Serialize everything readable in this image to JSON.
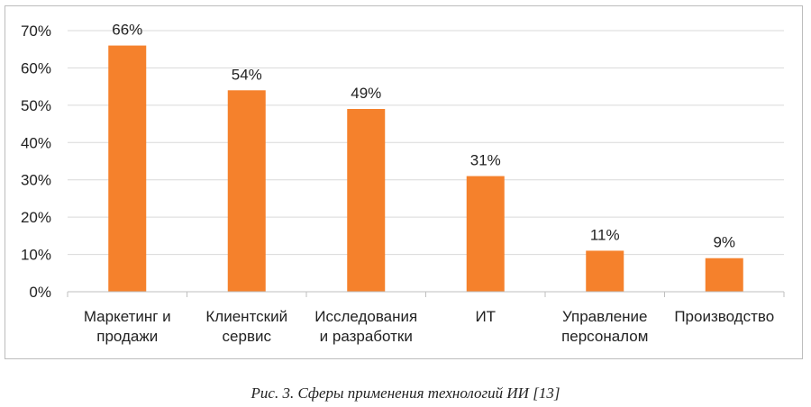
{
  "chart_data": {
    "type": "bar",
    "categories": [
      [
        "Маркетинг и",
        "продажи"
      ],
      [
        "Клиентский",
        "сервис"
      ],
      [
        "Исследования",
        "и разработки"
      ],
      [
        "ИТ"
      ],
      [
        "Управление",
        "персоналом"
      ],
      [
        "Производство"
      ]
    ],
    "values": [
      66,
      54,
      49,
      31,
      11,
      9
    ],
    "data_labels": [
      "66%",
      "54%",
      "49%",
      "31%",
      "11%",
      "9%"
    ],
    "y_ticks": [
      "0%",
      "10%",
      "20%",
      "30%",
      "40%",
      "50%",
      "60%",
      "70%"
    ],
    "ylim": [
      0,
      70
    ],
    "y_unit": "%",
    "grid": true,
    "bar_color": "#F5812C",
    "grid_color": "#d9d9d9",
    "title": "",
    "xlabel": "",
    "ylabel": ""
  },
  "caption": "Рис. 3. Сферы применения технологий ИИ [13]"
}
